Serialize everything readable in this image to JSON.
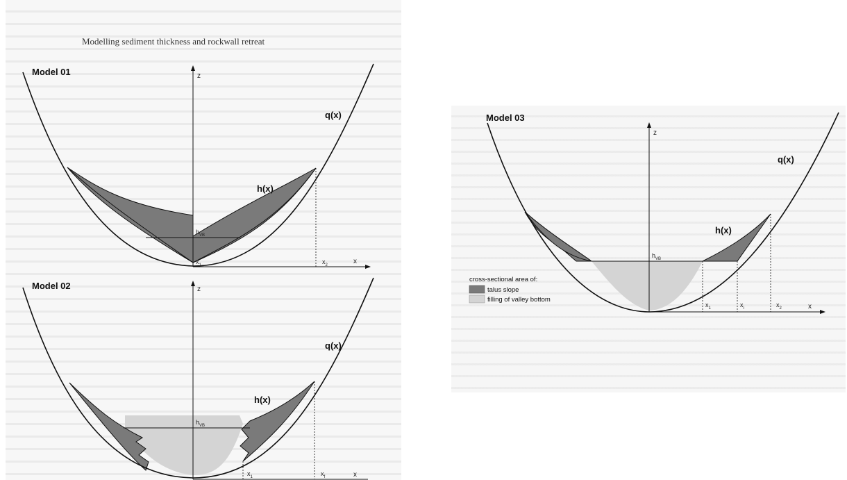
{
  "header": {
    "title": "Modelling sediment thickness and rockwall retreat"
  },
  "model01": {
    "title": "Model 01",
    "q_label": "q(x)",
    "h_label": "h(x)",
    "z_label": "z",
    "x_label": "x",
    "hvb_main": "h",
    "hvb_sub": "VB",
    "x1_main": "x",
    "x1_sub": "1",
    "x2_main": "x",
    "x2_sub": "2"
  },
  "model02": {
    "title": "Model 02",
    "q_label": "q(x)",
    "h_label": "h(x)",
    "z_label": "z",
    "x_label": "x",
    "hvb_main": "h",
    "hvb_sub": "VB",
    "x1_main": "x",
    "x1_sub": "1",
    "xf_main": "x",
    "xf_sub": "f"
  },
  "model03": {
    "title": "Model 03",
    "q_label": "q(x)",
    "h_label": "h(x)",
    "z_label": "z",
    "x_label": "x",
    "hvb_main": "h",
    "hvb_sub": "VB",
    "x1_main": "x",
    "x1_sub": "1",
    "xi_main": "x",
    "xi_sub": "i",
    "x2_main": "x",
    "x2_sub": "2"
  },
  "legend": {
    "title": "cross-sectional area of:",
    "items": [
      {
        "label": "talus slope",
        "color": "#7a7a7a"
      },
      {
        "label": "filling of valley bottom",
        "color": "#d4d4d4"
      }
    ]
  },
  "colors": {
    "talus": "#7a7a7a",
    "filling": "#d4d4d4",
    "line": "#111111"
  }
}
